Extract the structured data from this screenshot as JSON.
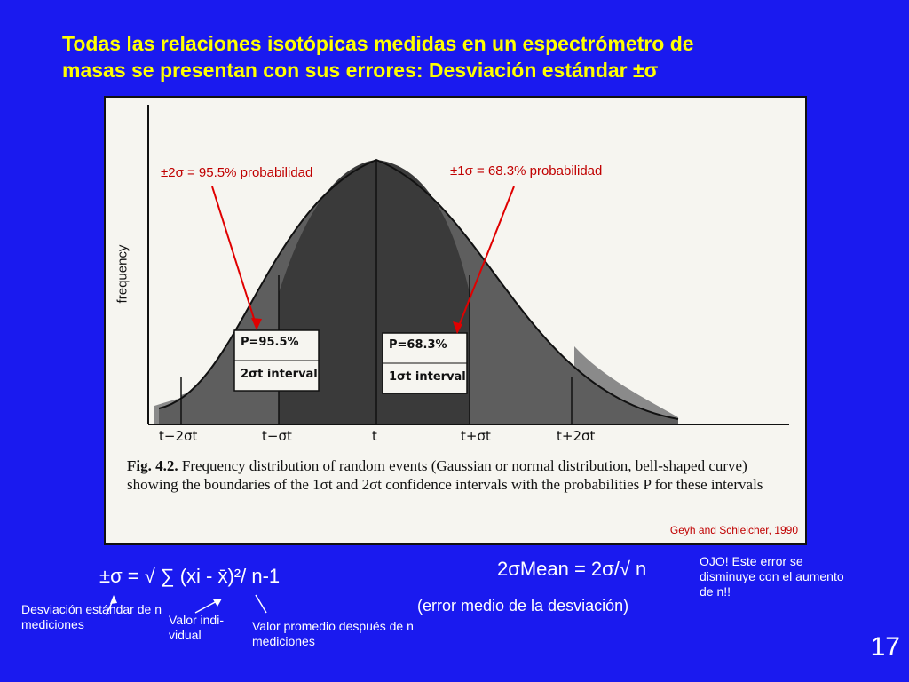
{
  "title": {
    "line1": "Todas las relaciones isotópicas medidas en un espectrómetro de",
    "line2": "masas se presentan con sus errores: Desviación estándar ±σ"
  },
  "figure": {
    "annotation_left": "±2σ = 95.5% probabilidad",
    "annotation_right": "±1σ = 68.3% probabilidad",
    "ylabel": "frequency",
    "box_left_line1": "P=95.5%",
    "box_left_line2": "2σt interval",
    "box_right_line1": "P=68.3%",
    "box_right_line2": "1σt interval",
    "ticks": [
      "t−2σt",
      "t−σt",
      "t",
      "t+σt",
      "t+2σt"
    ],
    "caption_label": "Fig. 4.2.",
    "caption_text": "Frequency distribution of random events (Gaussian or normal distribution, bell-shaped curve) showing the boundaries of the 1σt and 2σt confidence intervals with the probabilities P for these intervals",
    "source": "Geyh and Schleicher, 1990"
  },
  "formula_left": "±σ = √ ∑ (xi - x̄)²/ n-1",
  "formula_right": "2σMean = 2σ/√ n",
  "formula_right_sub": "(error medio de la desviación)",
  "note": "OJO! Este error se disminuye con el aumento de n!!",
  "labels": {
    "desv": "Desviación estándar de n mediciones",
    "valor_ind": "Valor indi- vidual",
    "valor_prom": "Valor promedio después de n mediciones"
  },
  "page_number": "17",
  "colors": {
    "background": "#1a1aef",
    "title": "#ffff00",
    "annotation": "#c00000"
  }
}
